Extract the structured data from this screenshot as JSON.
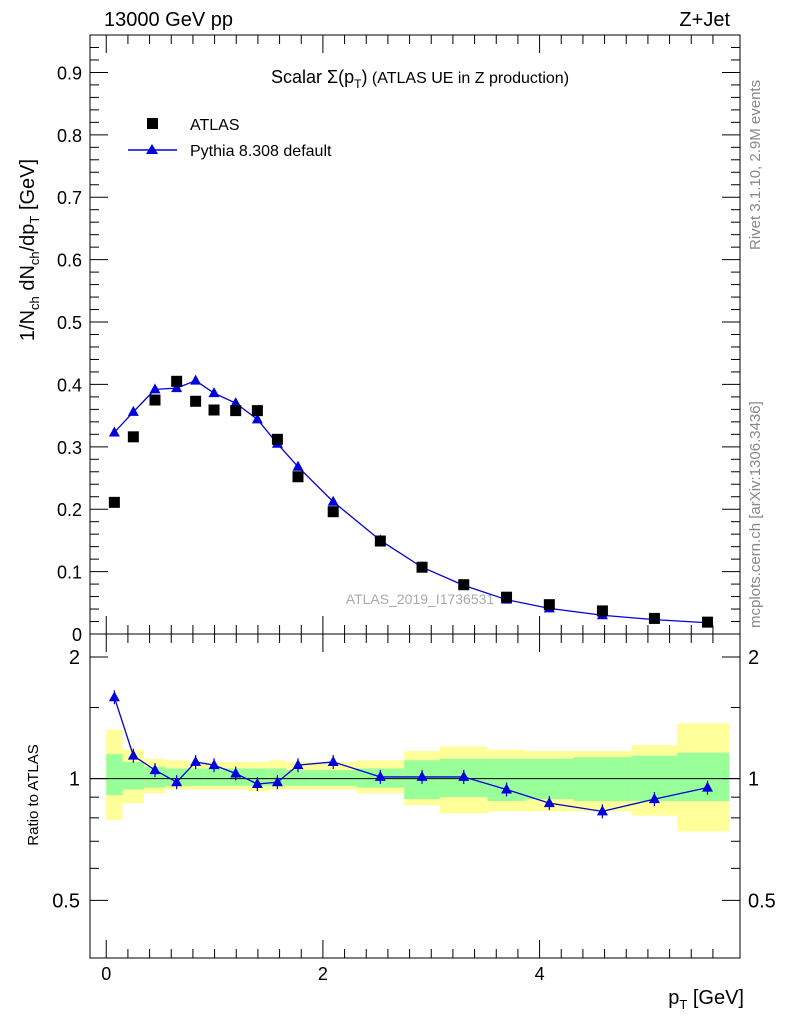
{
  "header": {
    "left": "13000 GeV pp",
    "right": "Z+Jet"
  },
  "side_labels": {
    "rivet": "Rivet 3.1.10,  2.9M events",
    "mcplots": "mcplots.cern.ch [arXiv:1306.3436]"
  },
  "watermark": "ATLAS_2019_I1736531",
  "colors": {
    "data": "#000000",
    "mc": "#0000dd",
    "band_inner": "#99ff99",
    "band_outer": "#ffff99"
  },
  "chart_data": [
    {
      "type": "scatter",
      "title_main": "Scalar ",
      "title_sigma": "Σ(p",
      "title_sub": "T",
      "title_close": ")",
      "title_rest": " (ATLAS UE in Z production)",
      "ylabel": "1/N_ch dN_ch/dp_T [GeV]",
      "xlim": [
        -0.15,
        5.85
      ],
      "ylim": [
        0,
        0.96
      ],
      "y_ticks": [
        "0",
        "0.1",
        "0.2",
        "0.3",
        "0.4",
        "0.5",
        "0.6",
        "0.7",
        "0.8",
        "0.9"
      ],
      "legend": {
        "placement": "top-left",
        "data_label": "ATLAS",
        "mc_label": "Pythia 8.308 default"
      },
      "series": [
        {
          "name": "ATLAS",
          "x": [
            0.075,
            0.25,
            0.45,
            0.65,
            0.825,
            0.995,
            1.195,
            1.395,
            1.58,
            1.77,
            2.095,
            2.53,
            2.915,
            3.3,
            3.695,
            4.09,
            4.58,
            5.06,
            5.55
          ],
          "y": [
            0.211,
            0.316,
            0.375,
            0.405,
            0.373,
            0.359,
            0.358,
            0.358,
            0.312,
            0.252,
            0.196,
            0.149,
            0.107,
            0.079,
            0.059,
            0.047,
            0.037,
            0.025,
            0.019
          ]
        },
        {
          "name": "Pythia 8.308 default",
          "x": [
            0.075,
            0.25,
            0.45,
            0.65,
            0.825,
            0.995,
            1.195,
            1.395,
            1.58,
            1.77,
            2.095,
            2.53,
            2.915,
            3.3,
            3.695,
            4.09,
            4.58,
            5.06,
            5.55
          ],
          "y": [
            0.323,
            0.356,
            0.392,
            0.394,
            0.406,
            0.386,
            0.37,
            0.344,
            0.305,
            0.268,
            0.212,
            0.15,
            0.107,
            0.078,
            0.055,
            0.041,
            0.03,
            0.023,
            0.018
          ]
        }
      ]
    },
    {
      "type": "line",
      "ylabel": "Ratio to ATLAS",
      "xlabel_main": "p",
      "xlabel_sub": "T",
      "xlabel_unit": " [GeV]",
      "xlim": [
        -0.15,
        5.85
      ],
      "ylim": [
        0.36,
        2.28
      ],
      "x_ticks": [
        "0",
        "2",
        "4"
      ],
      "y_ticks": [
        "0.5",
        "1",
        "2"
      ],
      "bands": {
        "edges": [
          0,
          0.15,
          0.35,
          0.55,
          0.75,
          0.9,
          1.1,
          1.3,
          1.5,
          1.66,
          1.88,
          2.31,
          2.75,
          3.08,
          3.52,
          3.87,
          4.31,
          4.85,
          5.27,
          5.75
        ],
        "inner_low": [
          0.91,
          0.94,
          0.95,
          0.96,
          0.96,
          0.96,
          0.96,
          0.96,
          0.96,
          0.96,
          0.96,
          0.95,
          0.89,
          0.9,
          0.88,
          0.89,
          0.88,
          0.88,
          0.88
        ],
        "inner_high": [
          1.15,
          1.1,
          1.07,
          1.06,
          1.06,
          1.06,
          1.06,
          1.06,
          1.06,
          1.05,
          1.05,
          1.06,
          1.11,
          1.12,
          1.12,
          1.12,
          1.13,
          1.14,
          1.16
        ],
        "outer_low": [
          0.79,
          0.87,
          0.92,
          0.94,
          0.94,
          0.94,
          0.94,
          0.93,
          0.94,
          0.94,
          0.94,
          0.92,
          0.86,
          0.82,
          0.83,
          0.83,
          0.83,
          0.81,
          0.74
        ],
        "outer_high": [
          1.32,
          1.18,
          1.12,
          1.11,
          1.1,
          1.1,
          1.1,
          1.1,
          1.11,
          1.1,
          1.1,
          1.11,
          1.17,
          1.2,
          1.18,
          1.17,
          1.17,
          1.21,
          1.37
        ]
      },
      "series": [
        {
          "name": "Pythia 8.308 default",
          "x": [
            0.075,
            0.25,
            0.45,
            0.65,
            0.825,
            0.995,
            1.195,
            1.395,
            1.58,
            1.77,
            2.095,
            2.53,
            2.915,
            3.3,
            3.695,
            4.09,
            4.58,
            5.06,
            5.55
          ],
          "y": [
            1.59,
            1.14,
            1.05,
            0.98,
            1.1,
            1.08,
            1.03,
            0.97,
            0.98,
            1.08,
            1.1,
            1.01,
            1.01,
            1.01,
            0.94,
            0.87,
            0.83,
            0.89,
            0.95
          ]
        }
      ]
    }
  ]
}
